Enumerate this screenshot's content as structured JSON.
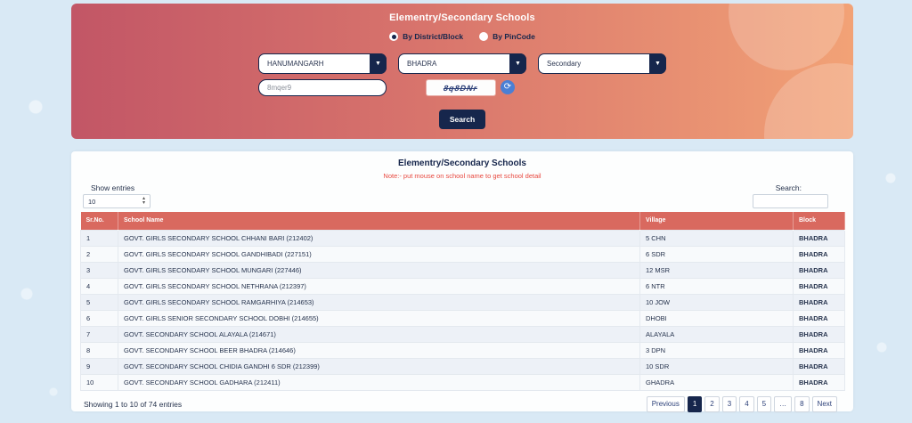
{
  "colors": {
    "navy": "#16264c",
    "hero_gradient_left": "#c25666",
    "hero_gradient_right": "#f2a276",
    "table_header": "#d9695f",
    "note_red": "#e8483f",
    "school_link": "#a5685e",
    "page_background": "#d9e9f5",
    "refresh_blue": "#4a7fd4"
  },
  "search_panel": {
    "title": "Elementry/Secondary Schools",
    "radios": [
      {
        "label": "By District/Block",
        "checked": true
      },
      {
        "label": "By PinCode",
        "checked": false
      }
    ],
    "district_value": "HANUMANGARH",
    "block_value": "BHADRA",
    "level_value": "Secondary",
    "captcha_input_value": "8mqer9",
    "captcha_text": "8q8DNr",
    "search_button_label": "Search"
  },
  "table_section": {
    "title": "Elementry/Secondary Schools",
    "note": "Note:- put mouse on school name to get school detail",
    "show_entries_label": "Show entries",
    "entries_value": "10",
    "search_label": "Search:",
    "columns": {
      "sr": "Sr.No.",
      "school": "School Name",
      "village": "Village",
      "block": "Block"
    },
    "rows": [
      {
        "sr": "1",
        "school": "GOVT. GIRLS SECONDARY SCHOOL CHHANI BARI (212402)",
        "village": "5 CHN",
        "block": "BHADRA"
      },
      {
        "sr": "2",
        "school": "GOVT. GIRLS SECONDARY SCHOOL GANDHIBADI (227151)",
        "village": "6 SDR",
        "block": "BHADRA"
      },
      {
        "sr": "3",
        "school": "GOVT. GIRLS SECONDARY SCHOOL MUNGARI (227446)",
        "village": "12 MSR",
        "block": "BHADRA"
      },
      {
        "sr": "4",
        "school": "GOVT. GIRLS SECONDARY SCHOOL NETHRANA (212397)",
        "village": "6 NTR",
        "block": "BHADRA"
      },
      {
        "sr": "5",
        "school": "GOVT. GIRLS SECONDARY SCHOOL RAMGARHIYA (214653)",
        "village": "10 JOW",
        "block": "BHADRA"
      },
      {
        "sr": "6",
        "school": "GOVT. GIRLS SENIOR SECONDARY SCHOOL DOBHI (214655)",
        "village": "DHOBI",
        "block": "BHADRA"
      },
      {
        "sr": "7",
        "school": "GOVT. SECONDARY SCHOOL ALAYALA (214671)",
        "village": "ALAYALA",
        "block": "BHADRA"
      },
      {
        "sr": "8",
        "school": "GOVT. SECONDARY SCHOOL BEER BHADRA (214646)",
        "village": "3 DPN",
        "block": "BHADRA"
      },
      {
        "sr": "9",
        "school": "GOVT. SECONDARY SCHOOL CHIDIA GANDHI 6 SDR (212399)",
        "village": "10 SDR",
        "block": "BHADRA"
      },
      {
        "sr": "10",
        "school": "GOVT. SECONDARY SCHOOL GADHARA (212411)",
        "village": "GHADRA",
        "block": "BHADRA"
      }
    ],
    "footer_info": "Showing 1 to 10 of 74 entries",
    "pagination": {
      "previous": "Previous",
      "pages": [
        "1",
        "2",
        "3",
        "4",
        "5"
      ],
      "ellipsis": "…",
      "last": "8",
      "next": "Next",
      "active_page": "1"
    }
  }
}
